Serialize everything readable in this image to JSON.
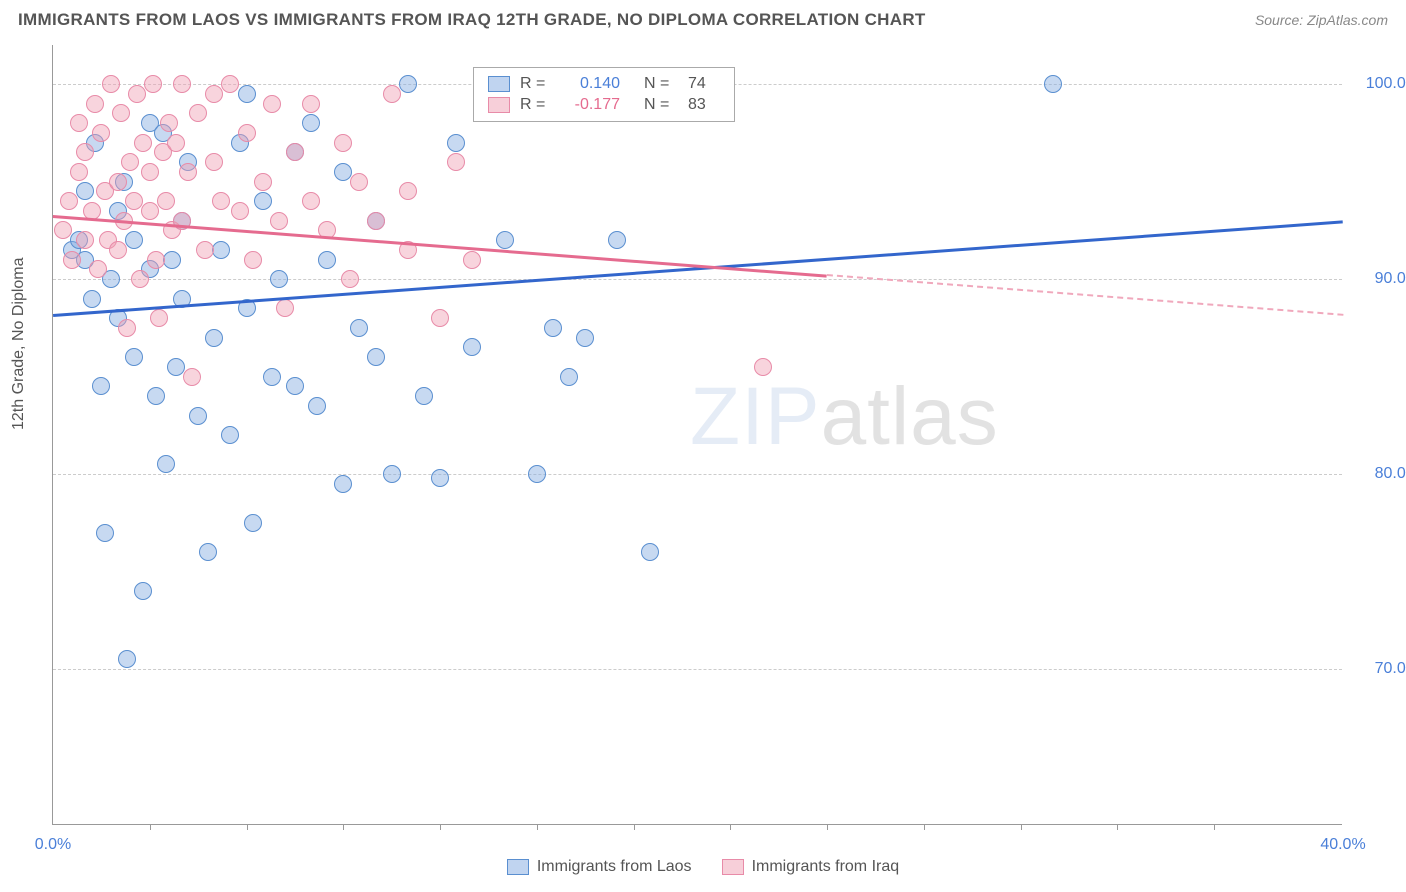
{
  "title": "IMMIGRANTS FROM LAOS VS IMMIGRANTS FROM IRAQ 12TH GRADE, NO DIPLOMA CORRELATION CHART",
  "source": "Source: ZipAtlas.com",
  "ylabel": "12th Grade, No Diploma",
  "watermark_a": "ZIP",
  "watermark_b": "atlas",
  "chart": {
    "type": "scatter",
    "background_color": "#ffffff",
    "grid_color": "#cccccc",
    "axis_color": "#999999",
    "tick_color": "#4a7fd8",
    "font_size_title": 17,
    "font_size_tick": 16,
    "marker_radius": 9,
    "xlim": [
      0,
      40
    ],
    "ylim": [
      62,
      102
    ],
    "xticks": [
      0,
      40
    ],
    "xtick_labels": [
      "0.0%",
      "40.0%"
    ],
    "xtick_marks": [
      3,
      6,
      9,
      12,
      15,
      18,
      21,
      24,
      27,
      30,
      33,
      36
    ],
    "yticks": [
      70,
      80,
      90,
      100
    ],
    "ytick_labels": [
      "70.0%",
      "80.0%",
      "90.0%",
      "100.0%"
    ],
    "series": [
      {
        "name": "Immigrants from Laos",
        "color_fill": "rgba(130,170,225,0.45)",
        "color_stroke": "#5a8fd0",
        "line_color": "#3366cc",
        "r": "0.140",
        "n": "74",
        "trend": {
          "x0": 0,
          "y0": 88.2,
          "x1": 40,
          "y1": 93.0,
          "solid_until": 40
        },
        "points": [
          [
            0.6,
            91.5
          ],
          [
            0.8,
            92.0
          ],
          [
            1.0,
            91.0
          ],
          [
            1.0,
            94.5
          ],
          [
            1.2,
            89.0
          ],
          [
            1.3,
            97.0
          ],
          [
            1.5,
            84.5
          ],
          [
            1.6,
            77.0
          ],
          [
            1.8,
            90.0
          ],
          [
            2.0,
            93.5
          ],
          [
            2.0,
            88.0
          ],
          [
            2.2,
            95.0
          ],
          [
            2.3,
            70.5
          ],
          [
            2.5,
            86.0
          ],
          [
            2.5,
            92.0
          ],
          [
            2.8,
            74.0
          ],
          [
            3.0,
            98.0
          ],
          [
            3.0,
            90.5
          ],
          [
            3.2,
            84.0
          ],
          [
            3.4,
            97.5
          ],
          [
            3.5,
            80.5
          ],
          [
            3.7,
            91.0
          ],
          [
            3.8,
            85.5
          ],
          [
            4.0,
            93.0
          ],
          [
            4.0,
            89.0
          ],
          [
            4.2,
            96.0
          ],
          [
            4.5,
            83.0
          ],
          [
            4.8,
            76.0
          ],
          [
            5.0,
            87.0
          ],
          [
            5.2,
            91.5
          ],
          [
            5.5,
            82.0
          ],
          [
            5.8,
            97.0
          ],
          [
            6.0,
            99.5
          ],
          [
            6.0,
            88.5
          ],
          [
            6.2,
            77.5
          ],
          [
            6.5,
            94.0
          ],
          [
            6.8,
            85.0
          ],
          [
            7.0,
            90.0
          ],
          [
            7.5,
            96.5
          ],
          [
            7.5,
            84.5
          ],
          [
            8.0,
            98.0
          ],
          [
            8.2,
            83.5
          ],
          [
            8.5,
            91.0
          ],
          [
            9.0,
            95.5
          ],
          [
            9.0,
            79.5
          ],
          [
            9.5,
            87.5
          ],
          [
            10.0,
            93.0
          ],
          [
            10.0,
            86.0
          ],
          [
            10.5,
            80.0
          ],
          [
            11.0,
            100.0
          ],
          [
            11.5,
            84.0
          ],
          [
            12.0,
            79.8
          ],
          [
            12.5,
            97.0
          ],
          [
            13.0,
            86.5
          ],
          [
            14.0,
            92.0
          ],
          [
            15.0,
            80.0
          ],
          [
            15.5,
            87.5
          ],
          [
            16.0,
            85.0
          ],
          [
            16.5,
            87.0
          ],
          [
            17.5,
            92.0
          ],
          [
            18.5,
            76.0
          ],
          [
            31.0,
            100.0
          ]
        ]
      },
      {
        "name": "Immigrants from Iraq",
        "color_fill": "rgba(240,160,180,0.45)",
        "color_stroke": "#e88ba8",
        "line_color": "#e56b8f",
        "r": "-0.177",
        "n": "83",
        "trend": {
          "x0": 0,
          "y0": 93.3,
          "x1": 40,
          "y1": 88.2,
          "solid_until": 24
        },
        "points": [
          [
            0.3,
            92.5
          ],
          [
            0.5,
            94.0
          ],
          [
            0.6,
            91.0
          ],
          [
            0.8,
            95.5
          ],
          [
            0.8,
            98.0
          ],
          [
            1.0,
            92.0
          ],
          [
            1.0,
            96.5
          ],
          [
            1.2,
            93.5
          ],
          [
            1.3,
            99.0
          ],
          [
            1.4,
            90.5
          ],
          [
            1.5,
            97.5
          ],
          [
            1.6,
            94.5
          ],
          [
            1.7,
            92.0
          ],
          [
            1.8,
            100.0
          ],
          [
            2.0,
            95.0
          ],
          [
            2.0,
            91.5
          ],
          [
            2.1,
            98.5
          ],
          [
            2.2,
            93.0
          ],
          [
            2.3,
            87.5
          ],
          [
            2.4,
            96.0
          ],
          [
            2.5,
            94.0
          ],
          [
            2.6,
            99.5
          ],
          [
            2.7,
            90.0
          ],
          [
            2.8,
            97.0
          ],
          [
            3.0,
            93.5
          ],
          [
            3.0,
            95.5
          ],
          [
            3.1,
            100.0
          ],
          [
            3.2,
            91.0
          ],
          [
            3.3,
            88.0
          ],
          [
            3.4,
            96.5
          ],
          [
            3.5,
            94.0
          ],
          [
            3.6,
            98.0
          ],
          [
            3.7,
            92.5
          ],
          [
            3.8,
            97.0
          ],
          [
            4.0,
            100.0
          ],
          [
            4.0,
            93.0
          ],
          [
            4.2,
            95.5
          ],
          [
            4.3,
            85.0
          ],
          [
            4.5,
            98.5
          ],
          [
            4.7,
            91.5
          ],
          [
            5.0,
            96.0
          ],
          [
            5.0,
            99.5
          ],
          [
            5.2,
            94.0
          ],
          [
            5.5,
            100.0
          ],
          [
            5.8,
            93.5
          ],
          [
            6.0,
            97.5
          ],
          [
            6.2,
            91.0
          ],
          [
            6.5,
            95.0
          ],
          [
            6.8,
            99.0
          ],
          [
            7.0,
            93.0
          ],
          [
            7.2,
            88.5
          ],
          [
            7.5,
            96.5
          ],
          [
            8.0,
            94.0
          ],
          [
            8.0,
            99.0
          ],
          [
            8.5,
            92.5
          ],
          [
            9.0,
            97.0
          ],
          [
            9.2,
            90.0
          ],
          [
            9.5,
            95.0
          ],
          [
            10.0,
            93.0
          ],
          [
            10.5,
            99.5
          ],
          [
            11.0,
            94.5
          ],
          [
            11.0,
            91.5
          ],
          [
            12.0,
            88.0
          ],
          [
            12.5,
            96.0
          ],
          [
            13.0,
            91.0
          ],
          [
            14.5,
            98.5
          ],
          [
            22.0,
            85.5
          ]
        ]
      }
    ]
  },
  "legend_bottom": [
    {
      "label": "Immigrants from Laos",
      "class": "blue"
    },
    {
      "label": "Immigrants from Iraq",
      "class": "pink"
    }
  ]
}
